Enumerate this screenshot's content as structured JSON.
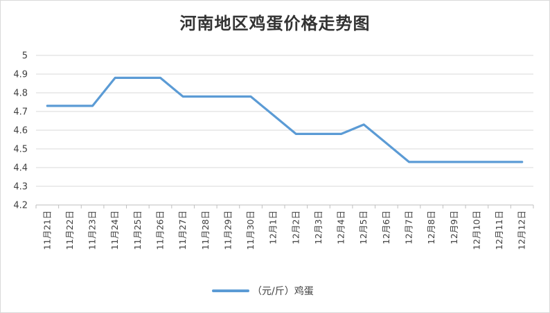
{
  "chart_data": {
    "type": "line",
    "title": "河南地区鸡蛋价格走势图",
    "categories": [
      "11月21日",
      "11月22日",
      "11月23日",
      "11月24日",
      "11月25日",
      "11月26日",
      "11月27日",
      "11月28日",
      "11月29日",
      "11月30日",
      "12月1日",
      "12月2日",
      "12月3日",
      "12月4日",
      "12月5日",
      "12月6日",
      "12月7日",
      "12月8日",
      "12月9日",
      "12月10日",
      "12月11日",
      "12月12日"
    ],
    "series": [
      {
        "name": "（元/斤）鸡蛋",
        "values": [
          4.73,
          4.73,
          4.73,
          4.88,
          4.88,
          4.88,
          4.78,
          4.78,
          4.78,
          4.78,
          4.68,
          4.58,
          4.58,
          4.58,
          4.63,
          4.53,
          4.43,
          4.43,
          4.43,
          4.43,
          4.43,
          4.43
        ],
        "color": "#5b9bd5"
      }
    ],
    "ylim": [
      4.2,
      5
    ],
    "yticks": [
      "4.2",
      "4.3",
      "4.4",
      "4.5",
      "4.6",
      "4.7",
      "4.8",
      "4.9",
      "5"
    ],
    "grid": true,
    "legend_position": "bottom"
  }
}
